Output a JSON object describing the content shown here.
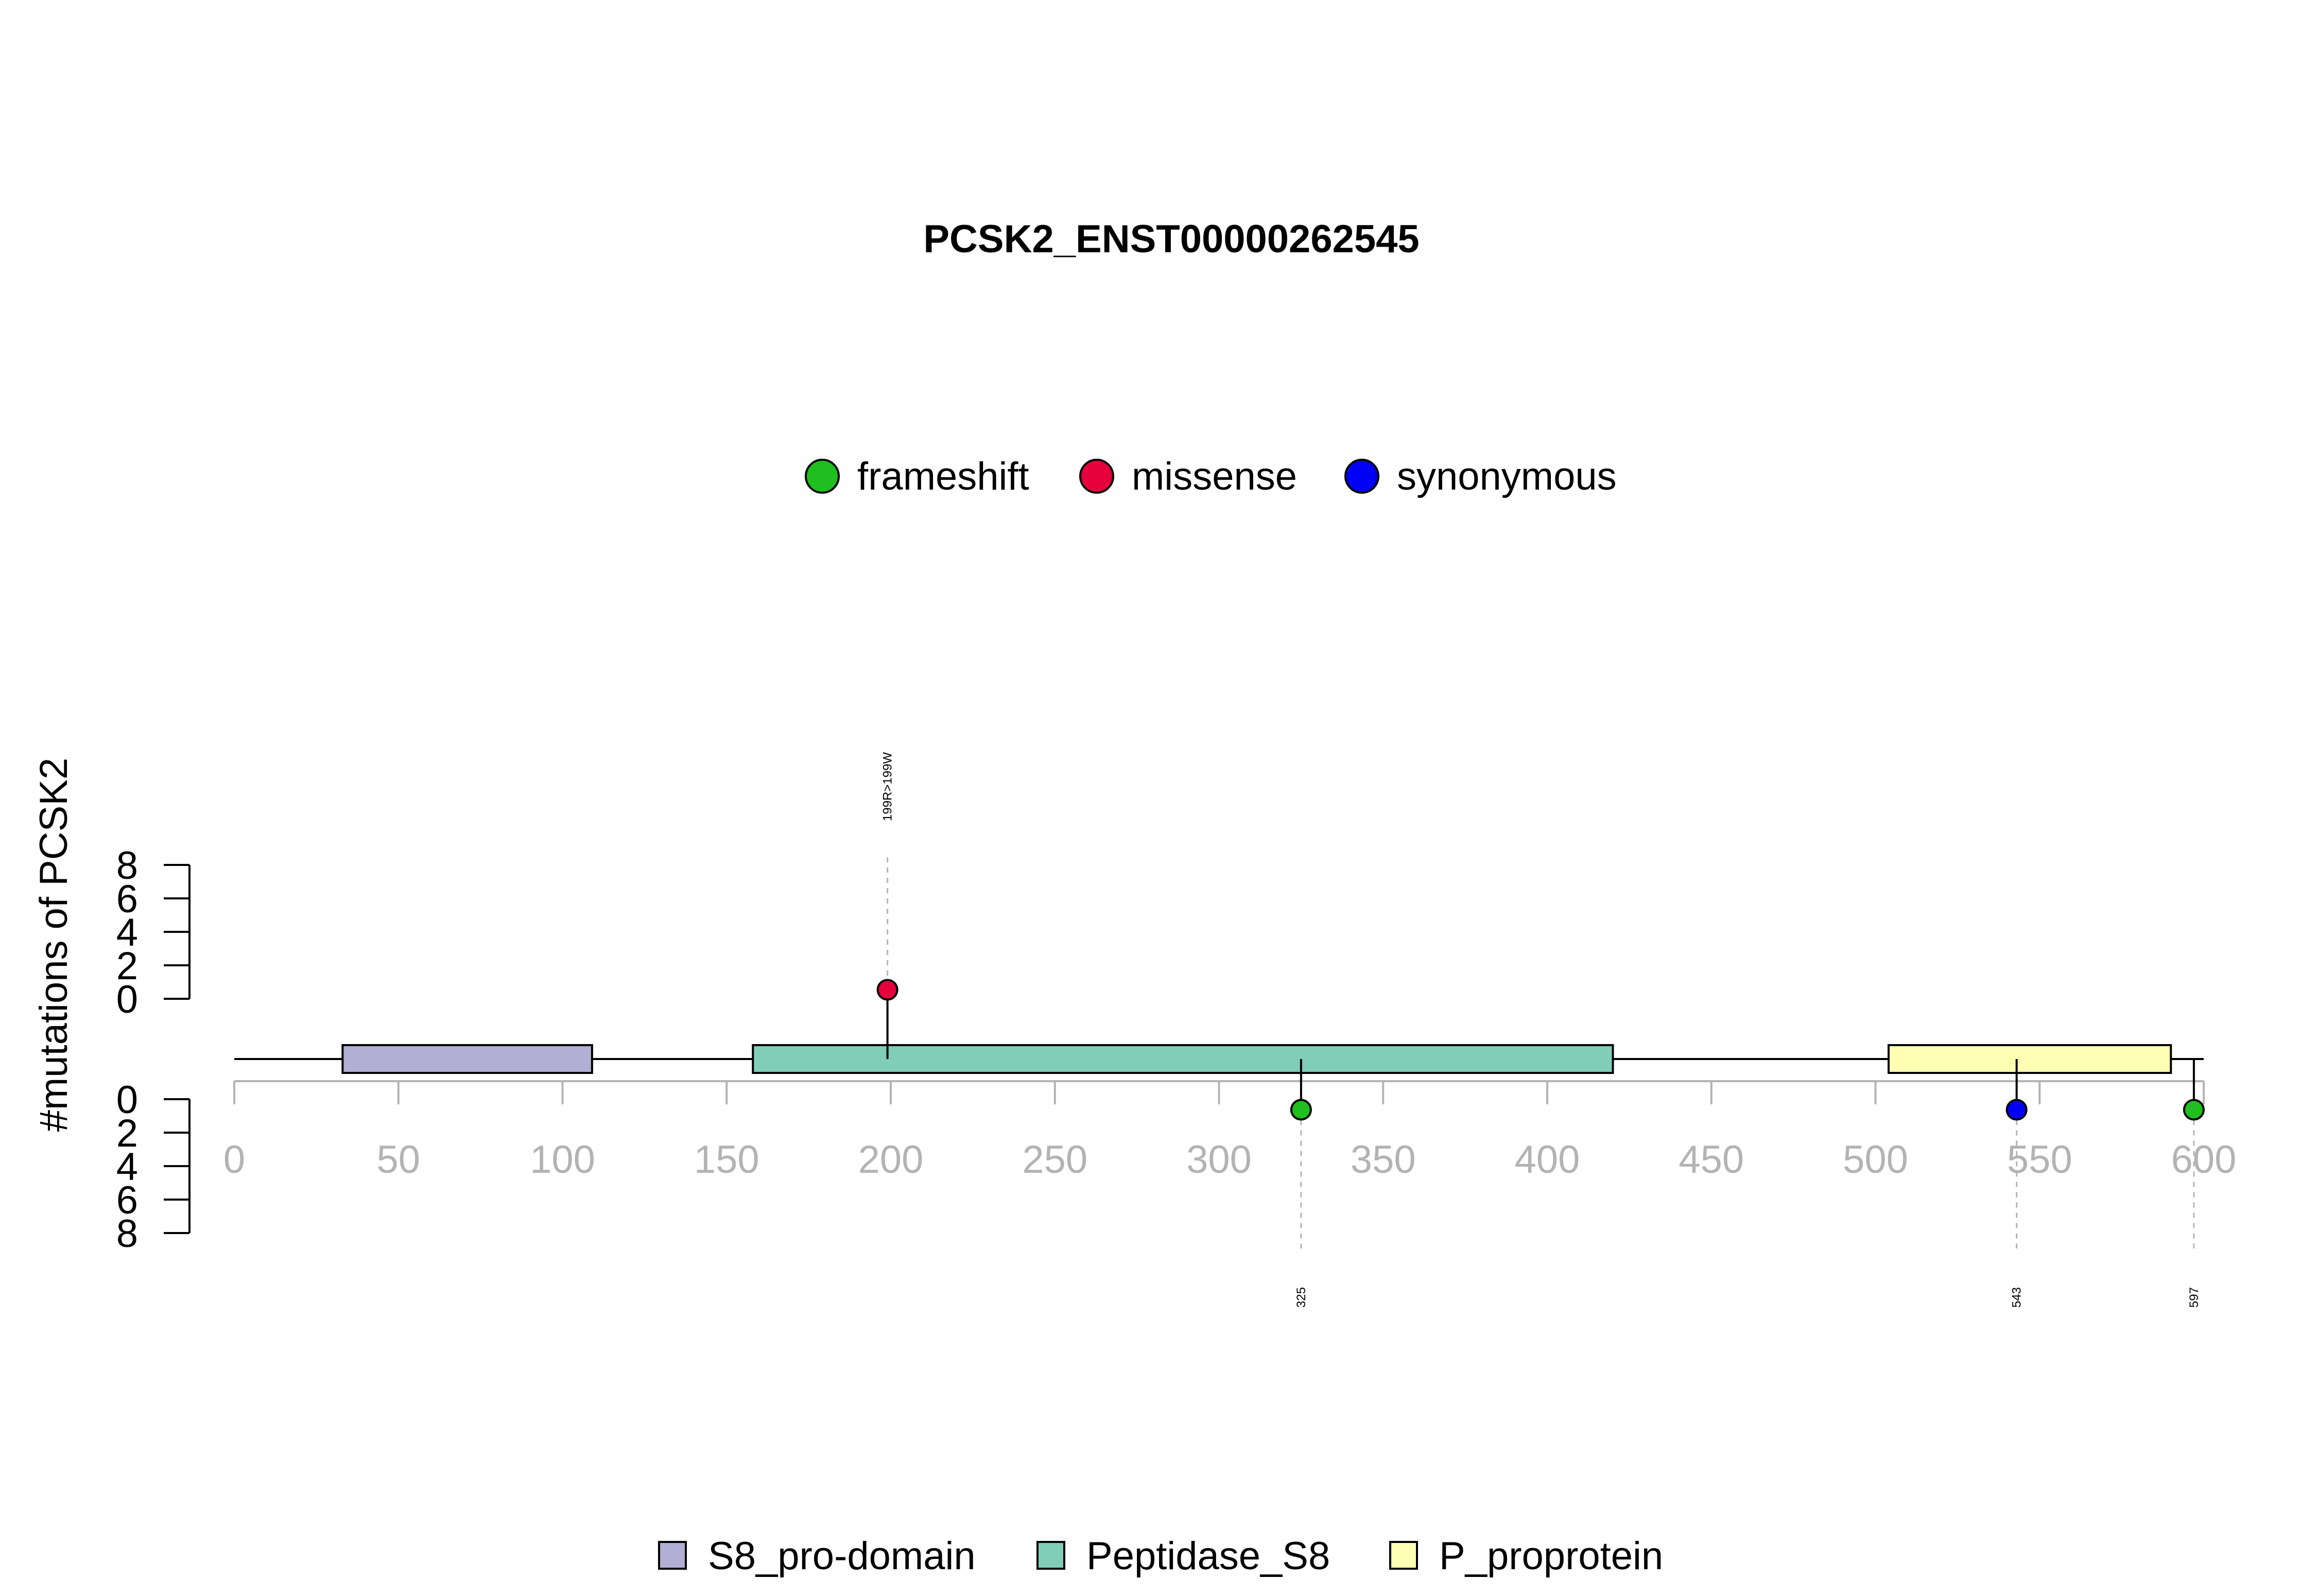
{
  "chart_data": {
    "type": "lollipop",
    "title": "PCSK2_ENST00000262545",
    "ylabel": "#mutations of PCSK2",
    "xlim": [
      0,
      600
    ],
    "x_ticks": [
      0,
      50,
      100,
      150,
      200,
      250,
      300,
      350,
      400,
      450,
      500,
      550,
      600
    ],
    "y_ticks_top": [
      0,
      2,
      4,
      6,
      8
    ],
    "y_ticks_bottom": [
      0,
      2,
      4,
      6,
      8
    ],
    "ylim": [
      0,
      8
    ],
    "protein_length": 600,
    "mutation_legend": [
      {
        "name": "frameshift",
        "color": "#1fbf1f"
      },
      {
        "name": "missense",
        "color": "#e6003c"
      },
      {
        "name": "synonymous",
        "color": "#0000f5"
      }
    ],
    "domain_legend": [
      {
        "name": "S8_pro-domain",
        "color": "#b3aed3"
      },
      {
        "name": "Peptidase_S8",
        "color": "#80cdb8"
      },
      {
        "name": "P_proprotein",
        "color": "#ffffb3"
      }
    ],
    "domains": [
      {
        "name": "S8_pro-domain",
        "start": 33,
        "end": 109,
        "color": "#b3aed3"
      },
      {
        "name": "Peptidase_S8",
        "start": 158,
        "end": 420,
        "color": "#80cdb8"
      },
      {
        "name": "P_proprotein",
        "start": 504,
        "end": 590,
        "color": "#ffffb3"
      }
    ],
    "mutations": [
      {
        "position": 199,
        "count": 1,
        "type": "missense",
        "side": "top",
        "label": "199R>199W"
      },
      {
        "position": 325,
        "count": 1,
        "type": "frameshift",
        "side": "bottom",
        "label": "325"
      },
      {
        "position": 543,
        "count": 1,
        "type": "synonymous",
        "side": "bottom",
        "label": "543"
      },
      {
        "position": 597,
        "count": 1,
        "type": "frameshift",
        "side": "bottom",
        "label": "597"
      }
    ]
  }
}
